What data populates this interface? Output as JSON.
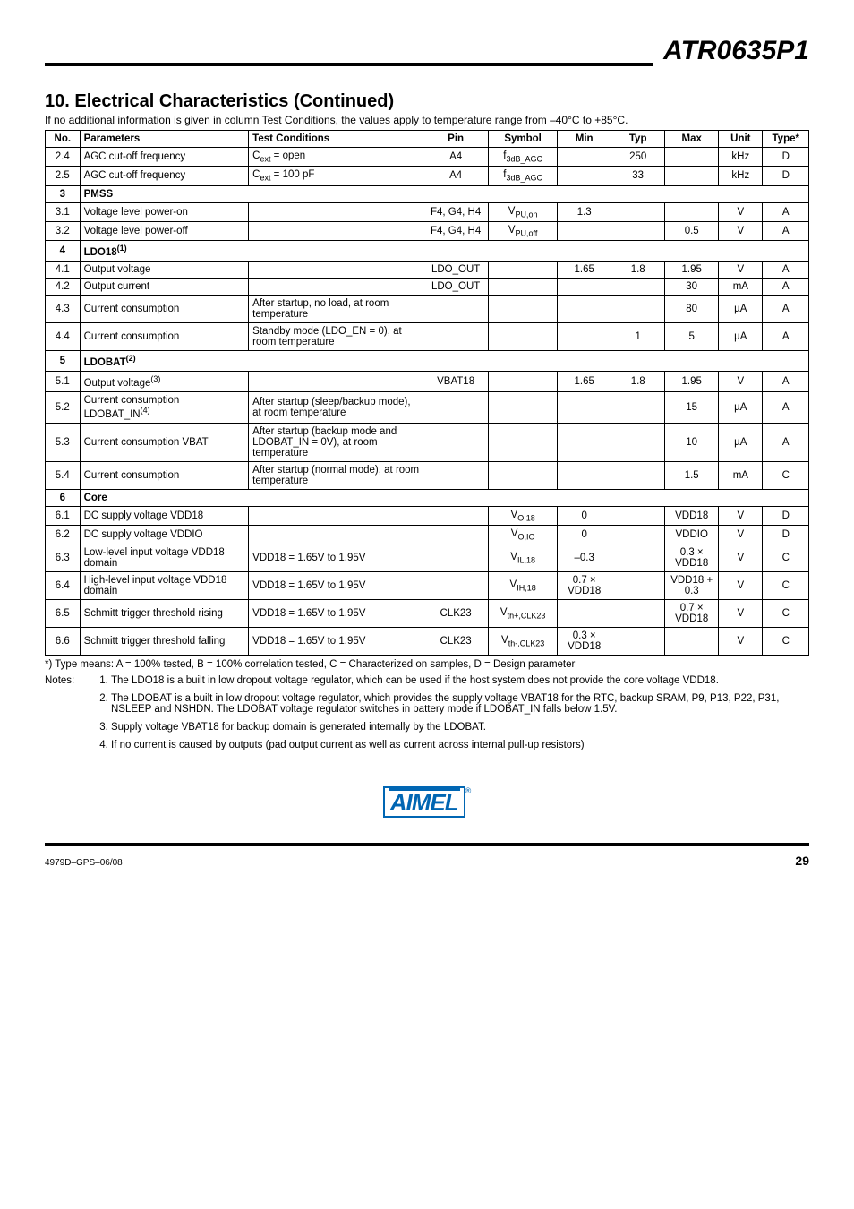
{
  "header": {
    "part_number": "ATR0635P1"
  },
  "section": {
    "number": "10.",
    "title": "Electrical Characteristics (Continued)",
    "subtitle": "If no additional information is given in column Test Conditions, the values apply to temperature range from –40°C to +85°C."
  },
  "table": {
    "headers": {
      "no": "No.",
      "parameters": "Parameters",
      "conditions": "Test Conditions",
      "pin": "Pin",
      "symbol": "Symbol",
      "min": "Min",
      "typ": "Typ",
      "max": "Max",
      "unit": "Unit",
      "type": "Type*"
    },
    "rows": [
      {
        "kind": "data",
        "no": "2.4",
        "param": "AGC cut-off frequency",
        "cond": "C<sub>ext</sub> = open",
        "pin": "A4",
        "sym": "f<sub>3dB_AGC</sub>",
        "min": "",
        "typ": "250",
        "max": "",
        "unit": "kHz",
        "type": "D"
      },
      {
        "kind": "data",
        "no": "2.5",
        "param": "AGC cut-off frequency",
        "cond": "C<sub>ext</sub> = 100 pF",
        "pin": "A4",
        "sym": "f<sub>3dB_AGC</sub>",
        "min": "",
        "typ": "33",
        "max": "",
        "unit": "kHz",
        "type": "D"
      },
      {
        "kind": "group",
        "no": "3",
        "label": "PMSS"
      },
      {
        "kind": "data",
        "no": "3.1",
        "param": "Voltage level power-on",
        "cond": "",
        "pin": "F4, G4, H4",
        "sym": "V<sub>PU,on</sub>",
        "min": "1.3",
        "typ": "",
        "max": "",
        "unit": "V",
        "type": "A"
      },
      {
        "kind": "data",
        "no": "3.2",
        "param": "Voltage level power-off",
        "cond": "",
        "pin": "F4, G4, H4",
        "sym": "V<sub>PU,off</sub>",
        "min": "",
        "typ": "",
        "max": "0.5",
        "unit": "V",
        "type": "A"
      },
      {
        "kind": "group",
        "no": "4",
        "label": "LDO18<sup>(1)</sup>"
      },
      {
        "kind": "data",
        "no": "4.1",
        "param": "Output voltage",
        "cond": "",
        "pin": "LDO_OUT",
        "sym": "",
        "min": "1.65",
        "typ": "1.8",
        "max": "1.95",
        "unit": "V",
        "type": "A"
      },
      {
        "kind": "data",
        "no": "4.2",
        "param": "Output current",
        "cond": "",
        "pin": "LDO_OUT",
        "sym": "",
        "min": "",
        "typ": "",
        "max": "30",
        "unit": "mA",
        "type": "A"
      },
      {
        "kind": "data",
        "no": "4.3",
        "param": "Current consumption",
        "cond": "After startup, no load, at room temperature",
        "pin": "",
        "sym": "",
        "min": "",
        "typ": "",
        "max": "80",
        "unit": "µA",
        "type": "A"
      },
      {
        "kind": "data",
        "no": "4.4",
        "param": "Current consumption",
        "cond": "Standby mode (LDO_EN = 0), at room temperature",
        "pin": "",
        "sym": "",
        "min": "",
        "typ": "1",
        "max": "5",
        "unit": "µA",
        "type": "A"
      },
      {
        "kind": "group",
        "no": "5",
        "label": "LDOBAT<sup>(2)</sup>"
      },
      {
        "kind": "data",
        "no": "5.1",
        "param": "Output voltage<sup>(3)</sup>",
        "cond": "",
        "pin": "VBAT18",
        "sym": "",
        "min": "1.65",
        "typ": "1.8",
        "max": "1.95",
        "unit": "V",
        "type": "A"
      },
      {
        "kind": "data",
        "no": "5.2",
        "param": "Current consumption LDOBAT_IN<sup>(4)</sup>",
        "cond": "After startup (sleep/backup mode), at room temperature",
        "pin": "",
        "sym": "",
        "min": "",
        "typ": "",
        "max": "15",
        "unit": "µA",
        "type": "A"
      },
      {
        "kind": "data",
        "no": "5.3",
        "param": "Current consumption VBAT",
        "cond": "After startup (backup mode and LDOBAT_IN = 0V), at room temperature",
        "pin": "",
        "sym": "",
        "min": "",
        "typ": "",
        "max": "10",
        "unit": "µA",
        "type": "A"
      },
      {
        "kind": "data",
        "no": "5.4",
        "param": "Current consumption",
        "cond": "After startup (normal mode), at room temperature",
        "pin": "",
        "sym": "",
        "min": "",
        "typ": "",
        "max": "1.5",
        "unit": "mA",
        "type": "C"
      },
      {
        "kind": "group",
        "no": "6",
        "label": "Core"
      },
      {
        "kind": "data",
        "no": "6.1",
        "param": "DC supply voltage VDD18",
        "cond": "",
        "pin": "",
        "sym": "V<sub>O,18</sub>",
        "min": "0",
        "typ": "",
        "max": "VDD18",
        "unit": "V",
        "type": "D"
      },
      {
        "kind": "data",
        "no": "6.2",
        "param": "DC supply voltage VDDIO",
        "cond": "",
        "pin": "",
        "sym": "V<sub>O,IO</sub>",
        "min": "0",
        "typ": "",
        "max": "VDDIO",
        "unit": "V",
        "type": "D"
      },
      {
        "kind": "data",
        "no": "6.3",
        "param": "Low-level input voltage VDD18 domain",
        "cond": "VDD18 = 1.65V to 1.95V",
        "pin": "",
        "sym": "V<sub>IL,18</sub>",
        "min": "–0.3",
        "typ": "",
        "max": "0.3 × VDD18",
        "unit": "V",
        "type": "C"
      },
      {
        "kind": "data",
        "no": "6.4",
        "param": "High-level input voltage VDD18 domain",
        "cond": "VDD18 = 1.65V to 1.95V",
        "pin": "",
        "sym": "V<sub>IH,18</sub>",
        "min": "0.7 × VDD18",
        "typ": "",
        "max": "VDD18 + 0.3",
        "unit": "V",
        "type": "C"
      },
      {
        "kind": "data",
        "no": "6.5",
        "param": "Schmitt trigger threshold rising",
        "cond": "VDD18 = 1.65V to 1.95V",
        "pin": "CLK23",
        "sym": "V<sub>th+,CLK23</sub>",
        "min": "",
        "typ": "",
        "max": "0.7 × VDD18",
        "unit": "V",
        "type": "C"
      },
      {
        "kind": "data",
        "no": "6.6",
        "param": "Schmitt trigger threshold falling",
        "cond": "VDD18 = 1.65V to 1.95V",
        "pin": "CLK23",
        "sym": "V<sub>th-,CLK23</sub>",
        "min": "0.3 × VDD18",
        "typ": "",
        "max": "",
        "unit": "V",
        "type": "C"
      }
    ]
  },
  "type_note": "*) Type means: A = 100% tested, B = 100% correlation tested, C = Characterized on samples, D = Design parameter",
  "notes": {
    "label": "Notes:",
    "items": [
      "The LDO18 is a built in low dropout voltage regulator, which can be used if the host system does not provide the core voltage VDD18.",
      "The LDOBAT is a built in low dropout voltage regulator, which provides the supply voltage VBAT18 for the RTC, backup SRAM, P9, P13, P22, P31, NSLEEP and NSHDN. The LDOBAT voltage regulator switches in battery mode if LDOBAT_IN falls below 1.5V.",
      "Supply voltage VBAT18 for backup domain is generated internally by the LDOBAT.",
      "If no current is caused by outputs (pad output current as well as current across internal pull-up resistors)"
    ]
  },
  "footer": {
    "doc_id": "4979D–GPS–06/08",
    "page": "29",
    "logo_text": "AIMEL"
  },
  "colors": {
    "logo": "#0066b3"
  }
}
